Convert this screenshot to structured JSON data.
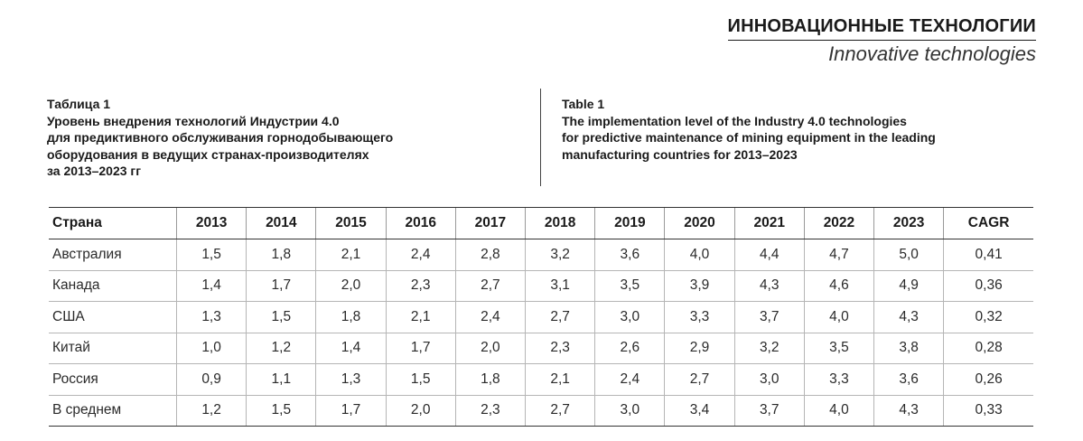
{
  "running_head": {
    "ru": "ИННОВАЦИОННЫЕ ТЕХНОЛОГИИ",
    "en": "Innovative technologies"
  },
  "caption_ru": [
    "Таблица 1",
    "Уровень внедрения технологий Индустрии 4.0",
    "для предиктивного обслуживания горнодобывающего",
    "оборудования в ведущих странах-производителях",
    "за 2013–2023 гг"
  ],
  "caption_en": [
    "Table 1",
    "The implementation level of the Industry 4.0 technologies",
    "for predictive maintenance of mining equipment in the leading",
    "manufacturing countries for 2013–2023"
  ],
  "table": {
    "headers": [
      "Страна",
      "2013",
      "2014",
      "2015",
      "2016",
      "2017",
      "2018",
      "2019",
      "2020",
      "2021",
      "2022",
      "2023",
      "CAGR"
    ],
    "rows": [
      [
        "Австралия",
        "1,5",
        "1,8",
        "2,1",
        "2,4",
        "2,8",
        "3,2",
        "3,6",
        "4,0",
        "4,4",
        "4,7",
        "5,0",
        "0,41"
      ],
      [
        "Канада",
        "1,4",
        "1,7",
        "2,0",
        "2,3",
        "2,7",
        "3,1",
        "3,5",
        "3,9",
        "4,3",
        "4,6",
        "4,9",
        "0,36"
      ],
      [
        "США",
        "1,3",
        "1,5",
        "1,8",
        "2,1",
        "2,4",
        "2,7",
        "3,0",
        "3,3",
        "3,7",
        "4,0",
        "4,3",
        "0,32"
      ],
      [
        "Китай",
        "1,0",
        "1,2",
        "1,4",
        "1,7",
        "2,0",
        "2,3",
        "2,6",
        "2,9",
        "3,2",
        "3,5",
        "3,8",
        "0,28"
      ],
      [
        "Россия",
        "0,9",
        "1,1",
        "1,3",
        "1,5",
        "1,8",
        "2,1",
        "2,4",
        "2,7",
        "3,0",
        "3,3",
        "3,6",
        "0,26"
      ],
      [
        "В среднем",
        "1,2",
        "1,5",
        "1,7",
        "2,0",
        "2,3",
        "2,7",
        "3,0",
        "3,4",
        "3,7",
        "4,0",
        "4,3",
        "0,33"
      ]
    ]
  }
}
